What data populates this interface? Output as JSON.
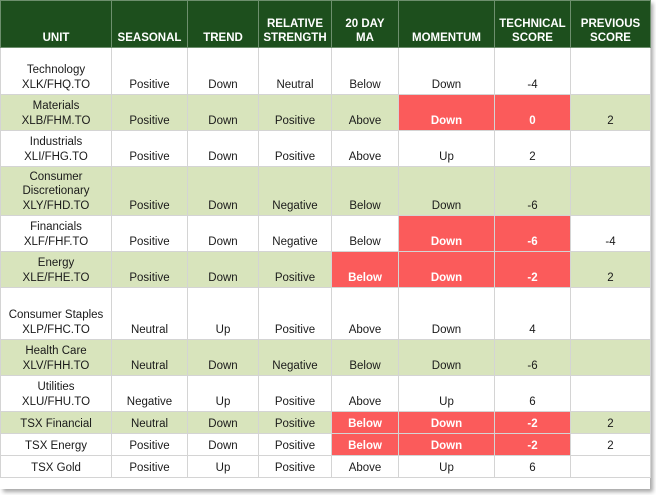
{
  "header": {
    "unit": "UNIT",
    "seasonal": "SEASONAL",
    "trend": "TREND",
    "relative_strength": [
      "RELATIVE",
      "STRENGTH"
    ],
    "ma20": [
      "20 DAY",
      "MA"
    ],
    "momentum": "MOMENTUM",
    "technical_score": [
      "TECHNICAL",
      "SCORE"
    ],
    "previous_score": [
      "PREVIOUS",
      "SCORE"
    ]
  },
  "colors": {
    "header_bg": "#1d4f1d",
    "alt_row_bg": "#d8e4bc",
    "warning_bg": "#fb5b5b"
  },
  "rows": [
    {
      "unit": [
        "Technology",
        "XLK/FHQ.TO"
      ],
      "seasonal": "Positive",
      "trend": "Down",
      "rs": "Neutral",
      "ma": "Below",
      "momentum": "Down",
      "score": "-4",
      "prev": "",
      "height": 47,
      "alt": false,
      "red": []
    },
    {
      "unit": [
        "Materials",
        "XLB/FHM.TO"
      ],
      "seasonal": "Positive",
      "trend": "Down",
      "rs": "Positive",
      "ma": "Above",
      "momentum": "Down",
      "score": "0",
      "prev": "2",
      "height": 36,
      "alt": true,
      "red": [
        "momentum",
        "score"
      ]
    },
    {
      "unit": [
        "Industrials",
        "XLI/FHG.TO"
      ],
      "seasonal": "Positive",
      "trend": "Down",
      "rs": "Positive",
      "ma": "Above",
      "momentum": "Up",
      "score": "2",
      "prev": "",
      "height": 36,
      "alt": false,
      "red": []
    },
    {
      "unit": [
        "Consumer",
        "Discretionary",
        "XLY/FHD.TO"
      ],
      "seasonal": "Positive",
      "trend": "Down",
      "rs": "Negative",
      "ma": "Below",
      "momentum": "Down",
      "score": "-6",
      "prev": "",
      "height": 49,
      "alt": true,
      "red": []
    },
    {
      "unit": [
        "Financials",
        "XLF/FHF.TO"
      ],
      "seasonal": "Positive",
      "trend": "Down",
      "rs": "Negative",
      "ma": "Below",
      "momentum": "Down",
      "score": "-6",
      "prev": "-4",
      "height": 36,
      "alt": false,
      "red": [
        "momentum",
        "score"
      ]
    },
    {
      "unit": [
        "Energy",
        "XLE/FHE.TO"
      ],
      "seasonal": "Positive",
      "trend": "Down",
      "rs": "Positive",
      "ma": "Below",
      "momentum": "Down",
      "score": "-2",
      "prev": "2",
      "height": 36,
      "alt": true,
      "red": [
        "ma",
        "momentum",
        "score"
      ]
    },
    {
      "unit": [
        "Consumer Staples",
        "XLP/FHC.TO"
      ],
      "seasonal": "Neutral",
      "trend": "Up",
      "rs": "Positive",
      "ma": "Above",
      "momentum": "Down",
      "score": "4",
      "prev": "",
      "height": 52,
      "alt": false,
      "red": []
    },
    {
      "unit": [
        "Health Care",
        "XLV/FHH.TO"
      ],
      "seasonal": "Neutral",
      "trend": "Down",
      "rs": "Negative",
      "ma": "Below",
      "momentum": "Down",
      "score": "-6",
      "prev": "",
      "height": 36,
      "alt": true,
      "red": []
    },
    {
      "unit": [
        "Utilities",
        "XLU/FHU.TO"
      ],
      "seasonal": "Negative",
      "trend": "Up",
      "rs": "Positive",
      "ma": "Above",
      "momentum": "Up",
      "score": "6",
      "prev": "",
      "height": 36,
      "alt": false,
      "red": []
    },
    {
      "unit": [
        "TSX Financial"
      ],
      "seasonal": "Neutral",
      "trend": "Down",
      "rs": "Positive",
      "ma": "Below",
      "momentum": "Down",
      "score": "-2",
      "prev": "2",
      "height": 22,
      "alt": true,
      "red": [
        "ma",
        "momentum",
        "score"
      ]
    },
    {
      "unit": [
        "TSX Energy"
      ],
      "seasonal": "Positive",
      "trend": "Down",
      "rs": "Positive",
      "ma": "Below",
      "momentum": "Down",
      "score": "-2",
      "prev": "2",
      "height": 22,
      "alt": false,
      "red": [
        "ma",
        "momentum",
        "score"
      ]
    },
    {
      "unit": [
        "TSX Gold"
      ],
      "seasonal": "Positive",
      "trend": "Up",
      "rs": "Positive",
      "ma": "Above",
      "momentum": "Up",
      "score": "6",
      "prev": "",
      "height": 22,
      "alt": false,
      "red": []
    }
  ]
}
